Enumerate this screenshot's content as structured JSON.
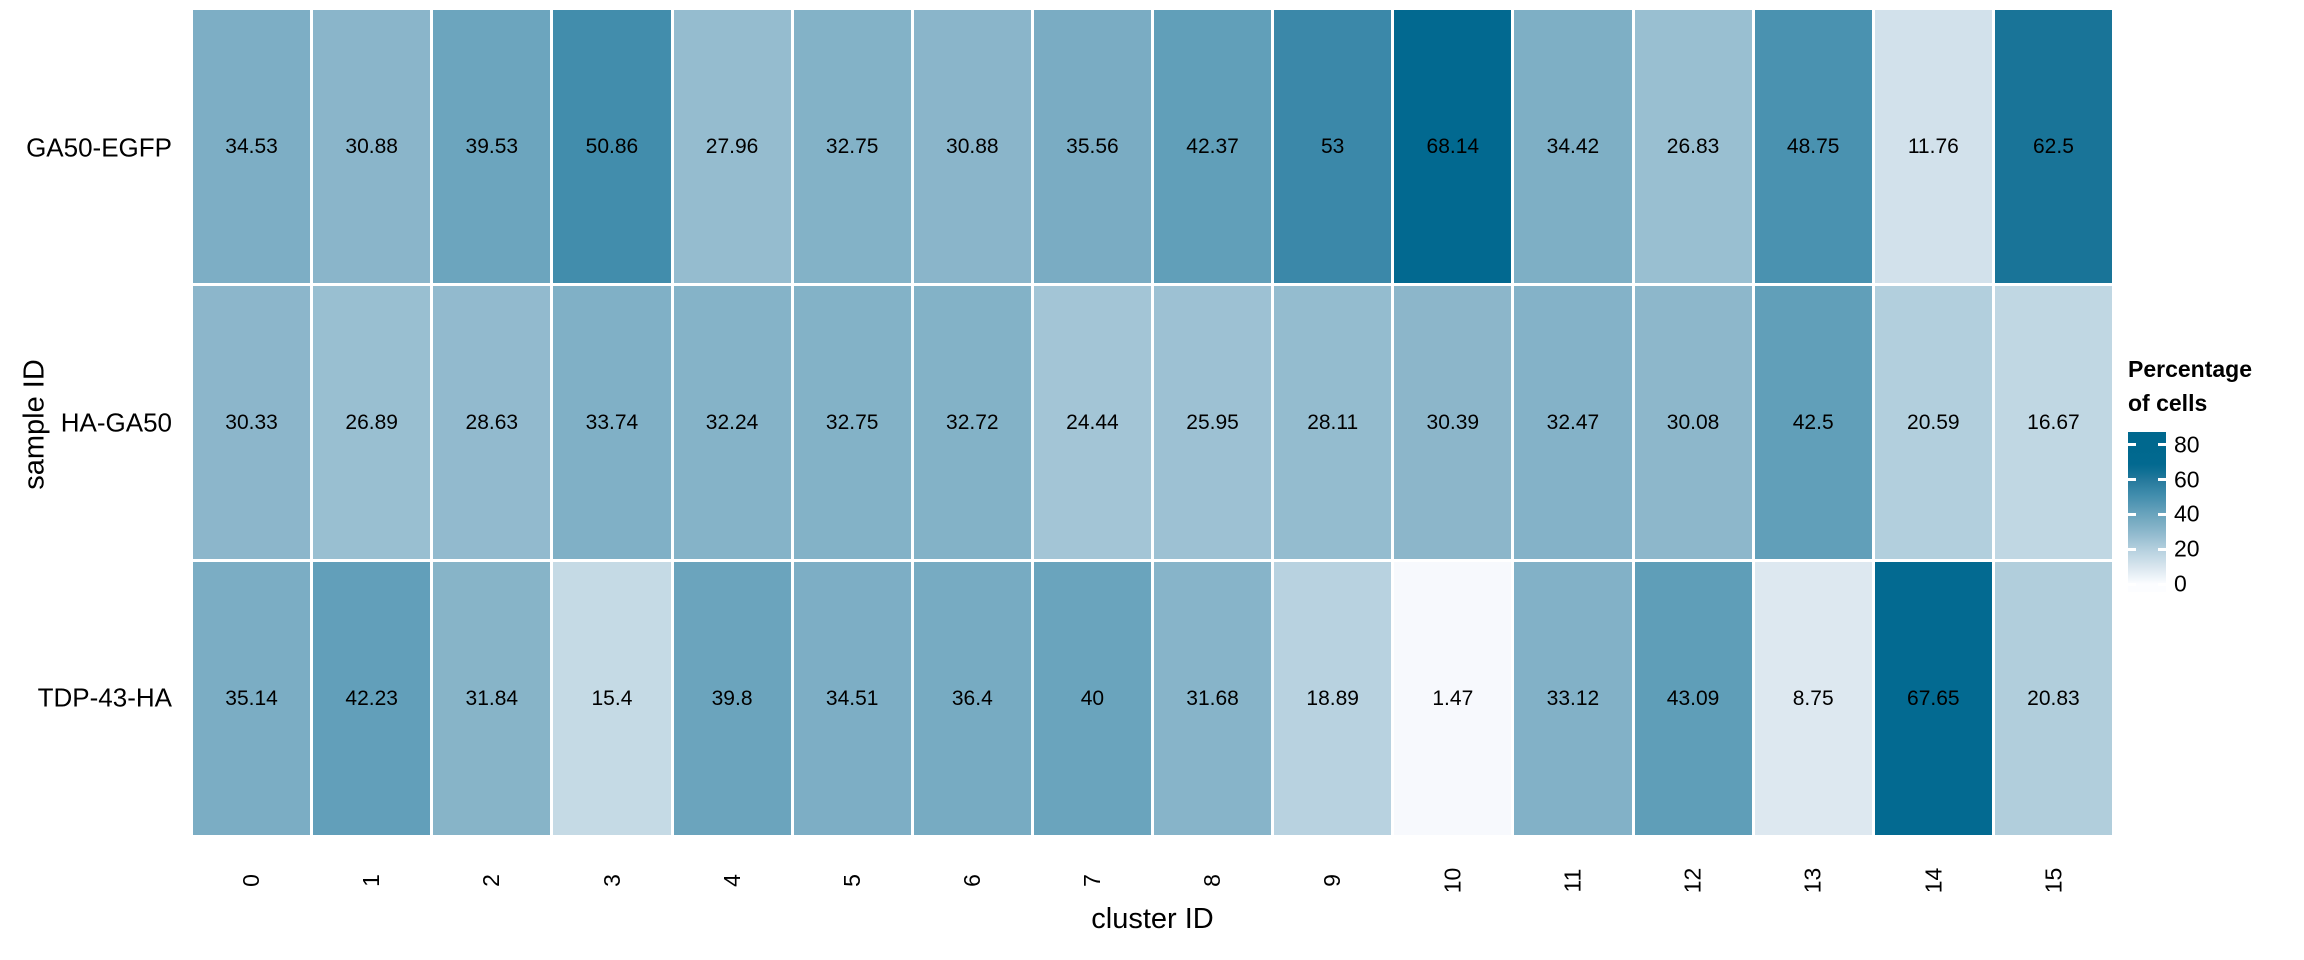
{
  "chart_data": {
    "type": "heatmap",
    "xlabel": "cluster ID",
    "ylabel": "sample ID",
    "categories_x": [
      "0",
      "1",
      "2",
      "3",
      "4",
      "5",
      "6",
      "7",
      "8",
      "9",
      "10",
      "11",
      "12",
      "13",
      "14",
      "15"
    ],
    "categories_y": [
      "GA50-EGFP",
      "HA-GA50",
      "TDP-43-HA"
    ],
    "series": [
      {
        "name": "GA50-EGFP",
        "values": [
          34.53,
          30.88,
          39.53,
          50.86,
          27.96,
          32.75,
          30.88,
          35.56,
          42.37,
          53,
          68.14,
          34.42,
          26.83,
          48.75,
          11.76,
          62.5
        ]
      },
      {
        "name": "HA-GA50",
        "values": [
          30.33,
          26.89,
          28.63,
          33.74,
          32.24,
          32.75,
          32.72,
          24.44,
          25.95,
          28.11,
          30.39,
          32.47,
          30.08,
          42.5,
          20.59,
          16.67
        ]
      },
      {
        "name": "TDP-43-HA",
        "values": [
          35.14,
          42.23,
          31.84,
          15.4,
          39.8,
          34.51,
          36.4,
          40,
          31.68,
          18.89,
          1.47,
          33.12,
          43.09,
          8.75,
          67.65,
          20.83
        ]
      }
    ],
    "legend": {
      "title_lines": [
        "Percentage",
        "of cells"
      ],
      "ticks": [
        80,
        60,
        40,
        20,
        0
      ],
      "bar_range_min": -4.6,
      "bar_range_max": 87.4,
      "position": "right"
    },
    "color_scale": {
      "low": "#fcfdff",
      "high": "#00688e",
      "stops": [
        [
          0,
          "#fcfdff"
        ],
        [
          10,
          "#d8e5ee"
        ],
        [
          20,
          "#b4d0de"
        ],
        [
          30,
          "#8db7cb"
        ],
        [
          40,
          "#6aa4bd"
        ],
        [
          50,
          "#458fae"
        ],
        [
          60,
          "#24799c"
        ],
        [
          68,
          "#026990"
        ],
        [
          80,
          "#00688e"
        ]
      ]
    },
    "grid": false,
    "cell_text_color": "#000000",
    "background": "#ffffff"
  }
}
